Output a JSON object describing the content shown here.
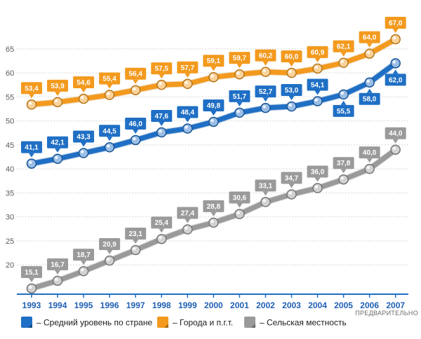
{
  "chart_data": {
    "type": "line",
    "categories": [
      "1993",
      "1994",
      "1995",
      "1996",
      "1997",
      "1998",
      "1999",
      "2000",
      "2001",
      "2002",
      "2003",
      "2004",
      "2005",
      "2006",
      "2007"
    ],
    "ylim": [
      15,
      70
    ],
    "yticks": [
      20,
      25,
      30,
      35,
      40,
      45,
      50,
      55,
      60,
      65
    ],
    "grid": true,
    "legend_position": "bottom",
    "note": "ПРЕДВАРИТЕЛЬНО",
    "series": [
      {
        "name": "– Средний уровень по стране",
        "color": "#1f6fc5",
        "values": [
          41.1,
          42.1,
          43.3,
          44.5,
          46.0,
          47.6,
          48.4,
          49.8,
          51.7,
          52.7,
          53.0,
          54.1,
          55.5,
          58.0,
          62.0
        ],
        "labels": [
          "41,1",
          "42,1",
          "43,3",
          "44,5",
          "46,0",
          "47,6",
          "48,4",
          "49,8",
          "51,7",
          "52,7",
          "53,0",
          "54,1",
          "55,5",
          "58,0",
          "62,0"
        ]
      },
      {
        "name": "– Города и п.г.т.",
        "color": "#f39a1e",
        "values": [
          53.4,
          53.9,
          54.6,
          55.4,
          56.4,
          57.5,
          57.7,
          59.1,
          59.7,
          60.2,
          60.0,
          60.9,
          62.1,
          64.0,
          67.0
        ],
        "labels": [
          "53,4",
          "53,9",
          "54,6",
          "55,4",
          "56,4",
          "57,5",
          "57,7",
          "59,1",
          "59,7",
          "60,2",
          "60,0",
          "60,9",
          "62,1",
          "64,0",
          "67,0"
        ]
      },
      {
        "name": "– Сельская местность",
        "color": "#9a9a9a",
        "values": [
          15.1,
          16.7,
          18.7,
          20.9,
          23.1,
          25.4,
          27.4,
          28.8,
          30.6,
          33.1,
          34.7,
          36.0,
          37.8,
          40.0,
          44.0
        ],
        "labels": [
          "15,1",
          "16,7",
          "18,7",
          "20,9",
          "23,1",
          "25,4",
          "27,4",
          "28,8",
          "30,6",
          "33,1",
          "34,7",
          "36,0",
          "37,8",
          "40,0",
          "44,0"
        ]
      }
    ]
  }
}
